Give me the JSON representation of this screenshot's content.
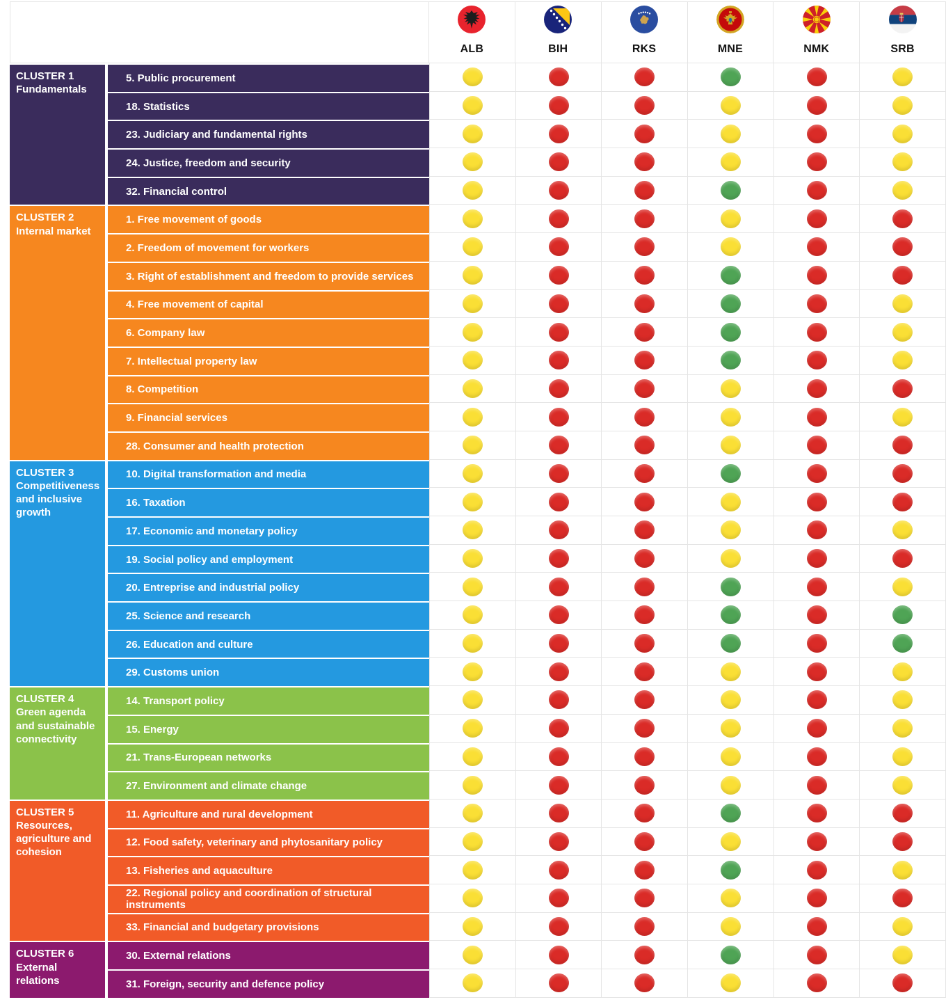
{
  "header": {
    "countries": [
      {
        "code": "ALB",
        "flag_icon": "albania-flag-icon"
      },
      {
        "code": "BIH",
        "flag_icon": "bosnia-herzegovina-flag-icon"
      },
      {
        "code": "RKS",
        "flag_icon": "kosovo-flag-icon"
      },
      {
        "code": "MNE",
        "flag_icon": "montenegro-flag-icon"
      },
      {
        "code": "NMK",
        "flag_icon": "north-macedonia-flag-icon"
      },
      {
        "code": "SRB",
        "flag_icon": "serbia-flag-icon"
      }
    ]
  },
  "status_colors": {
    "yellow": "#fadf35",
    "red": "#da2b27",
    "green": "#4fa455"
  },
  "grid_line_color": "#e5e5e5",
  "chart_data": {
    "type": "table",
    "columns": [
      "ALB",
      "BIH",
      "RKS",
      "MNE",
      "NMK",
      "SRB"
    ],
    "clusters": [
      {
        "title": "CLUSTER 1",
        "subtitle": "Fundamentals",
        "color": "#3a2c5c",
        "rows": [
          {
            "chapter": "5. Public procurement",
            "statuses": [
              "yellow",
              "red",
              "red",
              "green",
              "red",
              "yellow"
            ]
          },
          {
            "chapter": "18. Statistics",
            "statuses": [
              "yellow",
              "red",
              "red",
              "yellow",
              "red",
              "yellow"
            ]
          },
          {
            "chapter": "23. Judiciary and fundamental rights",
            "statuses": [
              "yellow",
              "red",
              "red",
              "yellow",
              "red",
              "yellow"
            ]
          },
          {
            "chapter": "24. Justice, freedom and security",
            "statuses": [
              "yellow",
              "red",
              "red",
              "yellow",
              "red",
              "yellow"
            ]
          },
          {
            "chapter": "32. Financial control",
            "statuses": [
              "yellow",
              "red",
              "red",
              "green",
              "red",
              "yellow"
            ]
          }
        ]
      },
      {
        "title": "CLUSTER 2",
        "subtitle": "Internal market",
        "color": "#f6871f",
        "rows": [
          {
            "chapter": "1. Free movement of goods",
            "statuses": [
              "yellow",
              "red",
              "red",
              "yellow",
              "red",
              "red"
            ]
          },
          {
            "chapter": "2. Freedom of movement for workers",
            "statuses": [
              "yellow",
              "red",
              "red",
              "yellow",
              "red",
              "red"
            ]
          },
          {
            "chapter": "3. Right of establishment and freedom to provide services",
            "statuses": [
              "yellow",
              "red",
              "red",
              "green",
              "red",
              "red"
            ]
          },
          {
            "chapter": "4. Free movement of capital",
            "statuses": [
              "yellow",
              "red",
              "red",
              "green",
              "red",
              "yellow"
            ]
          },
          {
            "chapter": "6. Company law",
            "statuses": [
              "yellow",
              "red",
              "red",
              "green",
              "red",
              "yellow"
            ]
          },
          {
            "chapter": "7. Intellectual property law",
            "statuses": [
              "yellow",
              "red",
              "red",
              "green",
              "red",
              "yellow"
            ]
          },
          {
            "chapter": "8. Competition",
            "statuses": [
              "yellow",
              "red",
              "red",
              "yellow",
              "red",
              "red"
            ]
          },
          {
            "chapter": "9. Financial services",
            "statuses": [
              "yellow",
              "red",
              "red",
              "yellow",
              "red",
              "yellow"
            ]
          },
          {
            "chapter": "28. Consumer and health protection",
            "statuses": [
              "yellow",
              "red",
              "red",
              "yellow",
              "red",
              "red"
            ]
          }
        ]
      },
      {
        "title": "CLUSTER 3",
        "subtitle": "Competitiveness and inclusive growth",
        "color": "#2499e0",
        "rows": [
          {
            "chapter": "10. Digital transformation and media",
            "statuses": [
              "yellow",
              "red",
              "red",
              "green",
              "red",
              "red"
            ]
          },
          {
            "chapter": "16. Taxation",
            "statuses": [
              "yellow",
              "red",
              "red",
              "yellow",
              "red",
              "red"
            ]
          },
          {
            "chapter": "17. Economic and monetary policy",
            "statuses": [
              "yellow",
              "red",
              "red",
              "yellow",
              "red",
              "yellow"
            ]
          },
          {
            "chapter": "19. Social policy and employment",
            "statuses": [
              "yellow",
              "red",
              "red",
              "yellow",
              "red",
              "red"
            ]
          },
          {
            "chapter": "20. Entreprise and industrial policy",
            "statuses": [
              "yellow",
              "red",
              "red",
              "green",
              "red",
              "yellow"
            ]
          },
          {
            "chapter": "25. Science and research",
            "statuses": [
              "yellow",
              "red",
              "red",
              "green",
              "red",
              "green"
            ]
          },
          {
            "chapter": "26. Education and culture",
            "statuses": [
              "yellow",
              "red",
              "red",
              "green",
              "red",
              "green"
            ]
          },
          {
            "chapter": "29. Customs union",
            "statuses": [
              "yellow",
              "red",
              "red",
              "yellow",
              "red",
              "yellow"
            ]
          }
        ]
      },
      {
        "title": "CLUSTER 4",
        "subtitle": "Green agenda and sustainable connectivity",
        "color": "#8bc24a",
        "rows": [
          {
            "chapter": "14. Transport policy",
            "statuses": [
              "yellow",
              "red",
              "red",
              "yellow",
              "red",
              "yellow"
            ]
          },
          {
            "chapter": "15. Energy",
            "statuses": [
              "yellow",
              "red",
              "red",
              "yellow",
              "red",
              "yellow"
            ]
          },
          {
            "chapter": "21. Trans-European networks",
            "statuses": [
              "yellow",
              "red",
              "red",
              "yellow",
              "red",
              "yellow"
            ]
          },
          {
            "chapter": "27. Environment and climate change",
            "statuses": [
              "yellow",
              "red",
              "red",
              "yellow",
              "red",
              "yellow"
            ]
          }
        ]
      },
      {
        "title": "CLUSTER 5",
        "subtitle": "Resources, agriculture and cohesion",
        "color": "#f15b28",
        "rows": [
          {
            "chapter": "11. Agriculture and rural development",
            "statuses": [
              "yellow",
              "red",
              "red",
              "green",
              "red",
              "red"
            ]
          },
          {
            "chapter": "12. Food safety, veterinary and phytosanitary policy",
            "statuses": [
              "yellow",
              "red",
              "red",
              "yellow",
              "red",
              "red"
            ]
          },
          {
            "chapter": "13. Fisheries and aquaculture",
            "statuses": [
              "yellow",
              "red",
              "red",
              "green",
              "red",
              "yellow"
            ]
          },
          {
            "chapter": "22. Regional policy and coordination of structural instruments",
            "statuses": [
              "yellow",
              "red",
              "red",
              "yellow",
              "red",
              "red"
            ]
          },
          {
            "chapter": "33. Financial and budgetary provisions",
            "statuses": [
              "yellow",
              "red",
              "red",
              "yellow",
              "red",
              "yellow"
            ]
          }
        ]
      },
      {
        "title": "CLUSTER 6",
        "subtitle": "External relations",
        "color": "#8c1a6e",
        "rows": [
          {
            "chapter": "30. External relations",
            "statuses": [
              "yellow",
              "red",
              "red",
              "green",
              "red",
              "yellow"
            ]
          },
          {
            "chapter": "31. Foreign, security and defence policy",
            "statuses": [
              "yellow",
              "red",
              "red",
              "yellow",
              "red",
              "red"
            ]
          }
        ]
      }
    ]
  }
}
